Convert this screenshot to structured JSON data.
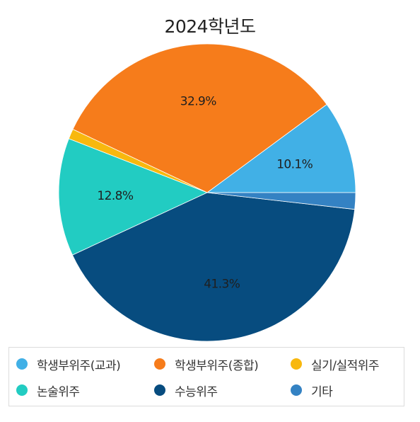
{
  "chart_data": {
    "type": "pie",
    "title": "2024학년도",
    "slices": [
      {
        "name": "학생부위주(교과)",
        "value": 10.1,
        "label": "10.1%",
        "color": "#41b0e6"
      },
      {
        "name": "학생부위주(종합)",
        "value": 32.9,
        "label": "32.9%",
        "color": "#f67c1b"
      },
      {
        "name": "실기/실적위주",
        "value": 1.1,
        "label": "",
        "color": "#f8b80e"
      },
      {
        "name": "논술위주",
        "value": 12.8,
        "label": "12.8%",
        "color": "#22ccc2"
      },
      {
        "name": "수능위주",
        "value": 41.3,
        "label": "41.3%",
        "color": "#074c7f"
      },
      {
        "name": "기타",
        "value": 1.8,
        "label": "",
        "color": "#3482c3"
      }
    ],
    "legend_position": "bottom"
  }
}
